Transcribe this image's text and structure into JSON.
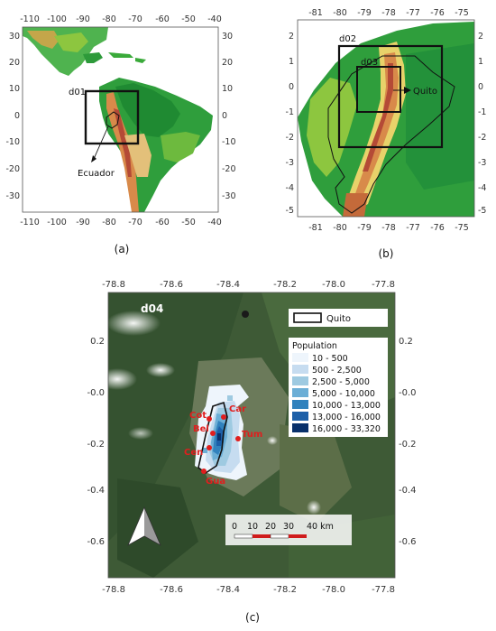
{
  "panel_a": {
    "caption": "(a)",
    "x_ticks": [
      "-110",
      "-100",
      "-90",
      "-80",
      "-70",
      "-60",
      "-50",
      "-40"
    ],
    "y_ticks": [
      "30",
      "20",
      "10",
      "0",
      "-10",
      "-20",
      "-30"
    ],
    "domain_label": "d01",
    "country_label": "Ecuador"
  },
  "panel_b": {
    "caption": "(b)",
    "x_ticks": [
      "-81",
      "-80",
      "-79",
      "-78",
      "-77",
      "-76",
      "-75"
    ],
    "y_ticks": [
      "2",
      "1",
      "0",
      "-1",
      "-2",
      "-3",
      "-4",
      "-5"
    ],
    "domain2_label": "d02",
    "domain3_label": "d03",
    "city_label": "Quito"
  },
  "panel_c": {
    "caption": "(c)",
    "x_ticks": [
      "-78.8",
      "-78.6",
      "-78.4",
      "-78.2",
      "-78.0",
      "-77.8"
    ],
    "y_ticks": [
      "0.2",
      "-0.0",
      "-0.2",
      "-0.4",
      "-0.6"
    ],
    "domain_label": "d04",
    "legend_boundary": "Quito",
    "legend_title": "Population",
    "legend_items": [
      {
        "label": "10 - 500",
        "color": "#eef5fc"
      },
      {
        "label": "500 - 2,500",
        "color": "#c6dcf0"
      },
      {
        "label": "2,500 - 5,000",
        "color": "#9ecae1"
      },
      {
        "label": "5,000 - 10,000",
        "color": "#6baed6"
      },
      {
        "label": "10,000 - 13,000",
        "color": "#3182bd"
      },
      {
        "label": "13,000 - 16,000",
        "color": "#1c5fa8"
      },
      {
        "label": "16,000 - 33,320",
        "color": "#08306b"
      }
    ],
    "stations": [
      "Car",
      "Cot",
      "Bel",
      "Tum",
      "Cen",
      "Gua"
    ],
    "scale_labels": [
      "0",
      "10",
      "20",
      "30",
      "40 km"
    ]
  }
}
